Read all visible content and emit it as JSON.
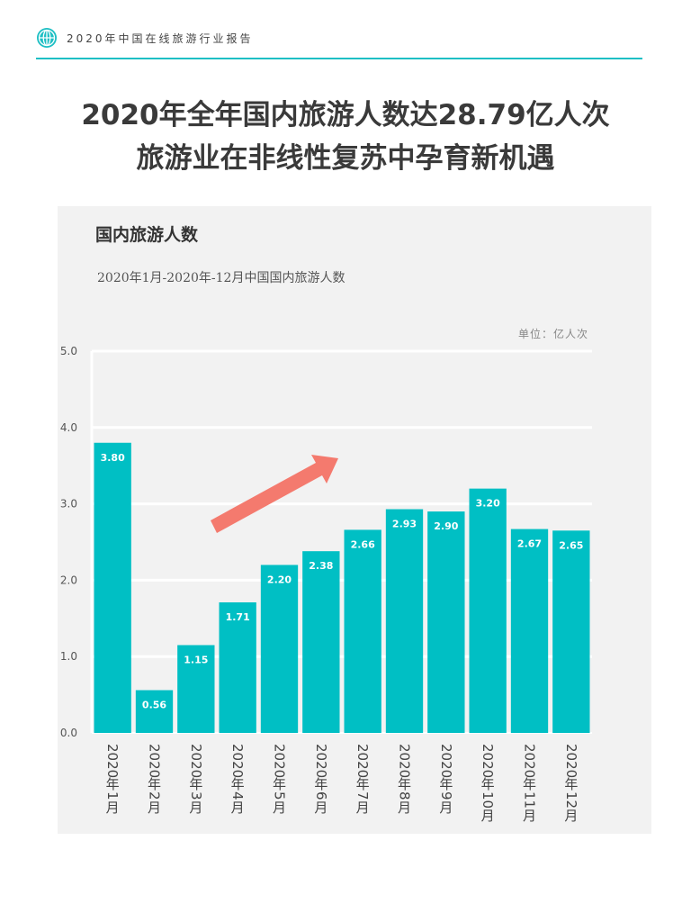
{
  "header": {
    "report_title": "2020年中国在线旅游行业报告"
  },
  "headline": {
    "line1": "2020年全年国内旅游人数达28.79亿人次",
    "line2": "旅游业在非线性复苏中孕育新机遇"
  },
  "chart_data": {
    "type": "bar",
    "title": "国内旅游人数",
    "subtitle": "2020年1月-2020年-12月中国国内旅游人数",
    "unit": "单位：亿人次",
    "categories": [
      "2020年1月",
      "2020年2月",
      "2020年3月",
      "2020年4月",
      "2020年5月",
      "2020年6月",
      "2020年7月",
      "2020年8月",
      "2020年9月",
      "2020年10月",
      "2020年11月",
      "2020年12月"
    ],
    "values": [
      3.8,
      0.56,
      1.15,
      1.71,
      2.2,
      2.38,
      2.66,
      2.93,
      2.9,
      3.2,
      2.67,
      2.65
    ],
    "value_labels": [
      "3.80",
      "0.56",
      "1.15",
      "1.71",
      "2.20",
      "2.38",
      "2.66",
      "2.93",
      "2.90",
      "3.20",
      "2.67",
      "2.65"
    ],
    "yticks": [
      "0.0",
      "1.0",
      "2.0",
      "3.0",
      "4.0",
      "5.0"
    ],
    "ylim": [
      0,
      5
    ],
    "grid": true,
    "bar_color": "#00bfc4",
    "arrow_color": "#f47a6e"
  }
}
